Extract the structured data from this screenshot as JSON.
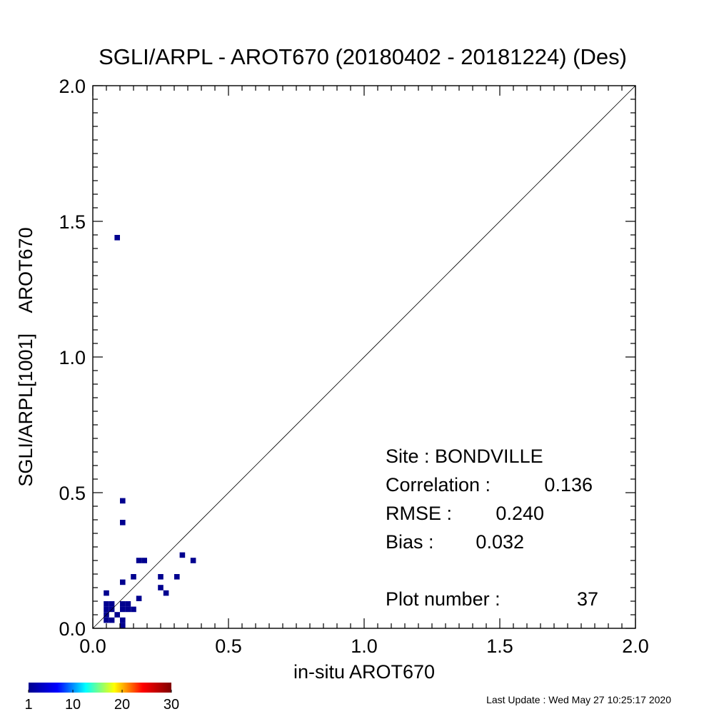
{
  "chart_data": {
    "type": "scatter",
    "title": "SGLI/ARPL - AROT670 (20180402 - 20181224) (Des)",
    "xlabel": "in-situ AROT670",
    "ylabel": "SGLI/ARPL[1001]    AROT670",
    "xlim": [
      0.0,
      2.0
    ],
    "ylim": [
      0.0,
      2.0
    ],
    "x_ticks": [
      "0.0",
      "0.5",
      "1.0",
      "1.5",
      "2.0"
    ],
    "y_ticks": [
      "0.0",
      "0.5",
      "1.0",
      "1.5",
      "2.0"
    ],
    "tick_values": [
      0.0,
      0.5,
      1.0,
      1.5,
      2.0
    ],
    "reference_line": "1:1",
    "cell_size": 0.02,
    "points": [
      {
        "x": 0.09,
        "y": 1.44,
        "count": 1
      },
      {
        "x": 0.11,
        "y": 0.47,
        "count": 1
      },
      {
        "x": 0.11,
        "y": 0.39,
        "count": 1
      },
      {
        "x": 0.33,
        "y": 0.27,
        "count": 1
      },
      {
        "x": 0.37,
        "y": 0.25,
        "count": 1
      },
      {
        "x": 0.17,
        "y": 0.25,
        "count": 1
      },
      {
        "x": 0.19,
        "y": 0.25,
        "count": 1
      },
      {
        "x": 0.25,
        "y": 0.19,
        "count": 1
      },
      {
        "x": 0.31,
        "y": 0.19,
        "count": 1
      },
      {
        "x": 0.15,
        "y": 0.19,
        "count": 1
      },
      {
        "x": 0.11,
        "y": 0.17,
        "count": 1
      },
      {
        "x": 0.25,
        "y": 0.15,
        "count": 1
      },
      {
        "x": 0.27,
        "y": 0.13,
        "count": 1
      },
      {
        "x": 0.05,
        "y": 0.13,
        "count": 1
      },
      {
        "x": 0.17,
        "y": 0.11,
        "count": 1
      },
      {
        "x": 0.05,
        "y": 0.09,
        "count": 1
      },
      {
        "x": 0.07,
        "y": 0.09,
        "count": 1
      },
      {
        "x": 0.11,
        "y": 0.09,
        "count": 1
      },
      {
        "x": 0.13,
        "y": 0.09,
        "count": 1
      },
      {
        "x": 0.05,
        "y": 0.07,
        "count": 1
      },
      {
        "x": 0.07,
        "y": 0.07,
        "count": 1
      },
      {
        "x": 0.11,
        "y": 0.07,
        "count": 1
      },
      {
        "x": 0.13,
        "y": 0.07,
        "count": 1
      },
      {
        "x": 0.15,
        "y": 0.07,
        "count": 1
      },
      {
        "x": 0.05,
        "y": 0.05,
        "count": 1
      },
      {
        "x": 0.09,
        "y": 0.05,
        "count": 1
      },
      {
        "x": 0.05,
        "y": 0.03,
        "count": 1
      },
      {
        "x": 0.07,
        "y": 0.03,
        "count": 1
      },
      {
        "x": 0.11,
        "y": 0.03,
        "count": 1
      },
      {
        "x": 0.11,
        "y": 0.01,
        "count": 1
      }
    ],
    "stats": {
      "site": "Site : BONDVILLE",
      "correlation_label": "Correlation :",
      "correlation_value": "0.136",
      "rmse_label": "RMSE :",
      "rmse_value": "0.240",
      "bias_label": "Bias :",
      "bias_value": "0.032",
      "plot_number_label": "Plot number :",
      "plot_number_value": "37"
    },
    "colorbar": {
      "labels": [
        "1",
        "10",
        "20",
        "30"
      ],
      "min": 1,
      "max": 30,
      "colors": [
        "#00008f",
        "#0000ff",
        "#00ffff",
        "#ffff00",
        "#ff0000",
        "#800000"
      ],
      "point_color": "#00008f"
    },
    "footer": "Last Update : Wed May 27 10:25:17 2020"
  }
}
